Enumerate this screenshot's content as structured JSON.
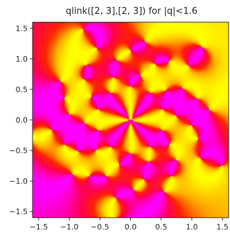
{
  "chart_data": {
    "type": "heatmap",
    "title": "qlink([2, 3],[2, 3]) for |q|<1.6",
    "xlabel": "",
    "ylabel": "",
    "xlim": [
      -1.6,
      1.6
    ],
    "ylim": [
      -1.6,
      1.6
    ],
    "x_ticks": [
      -1.5,
      -1.0,
      -0.5,
      0.0,
      0.5,
      1.0,
      1.5
    ],
    "x_tick_labels": [
      "−1.5",
      "−1.0",
      "−0.5",
      "0.0",
      "0.5",
      "1.0",
      "1.5"
    ],
    "y_ticks": [
      1.5,
      1.0,
      0.5,
      0.0,
      -0.5,
      -1.0,
      -1.5
    ],
    "y_tick_labels": [
      "1.5",
      "1.0",
      "0.5",
      "0.0",
      "−0.5",
      "−1.0",
      "−1.5"
    ],
    "grid": false,
    "colormap": [
      "#ff00ff",
      "#ff0055",
      "#ff2200",
      "#ffaa00",
      "#ffff00"
    ]
  }
}
